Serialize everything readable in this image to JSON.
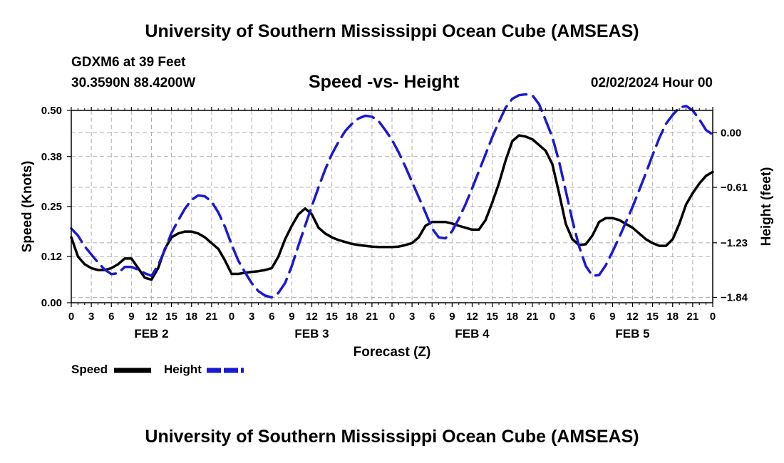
{
  "header": {
    "title": "University of Southern Mississippi Ocean Cube (AMSEAS)",
    "station": "GDXM6 at 39 Feet",
    "coords": "30.3590N  88.4200W",
    "subtitle": "Speed -vs- Height",
    "datetime": "02/02/2024 Hour 00"
  },
  "footer": {
    "title": "University of Southern Mississippi Ocean Cube (AMSEAS)"
  },
  "legend": {
    "speed": "Speed",
    "height": "Height"
  },
  "colors": {
    "speed": "#000000",
    "height": "#1a1ad0",
    "grid": "#b0b0b0"
  },
  "chart_data": {
    "type": "line",
    "title": "Speed -vs- Height",
    "xlabel": "Forecast (Z)",
    "ylabel": "Speed (Knots)",
    "y2label": "Height (feet)",
    "xlim": [
      0,
      96
    ],
    "ylim": [
      0,
      0.5
    ],
    "y2lim": [
      -1.9,
      0.25
    ],
    "x_ticks": [
      0,
      3,
      6,
      9,
      12,
      15,
      18,
      21,
      24,
      27,
      30,
      33,
      36,
      39,
      42,
      45,
      48,
      51,
      54,
      57,
      60,
      63,
      66,
      69,
      72,
      75,
      78,
      81,
      84,
      87,
      90,
      93,
      96
    ],
    "x_tick_labels": [
      "0",
      "3",
      "6",
      "9",
      "12",
      "15",
      "18",
      "21",
      "0",
      "3",
      "6",
      "9",
      "12",
      "15",
      "18",
      "21",
      "0",
      "3",
      "6",
      "9",
      "12",
      "15",
      "18",
      "21",
      "0",
      "3",
      "6",
      "9",
      "12",
      "15",
      "18",
      "21",
      "0"
    ],
    "day_labels": [
      {
        "label": "FEB 2",
        "x": 12
      },
      {
        "label": "FEB 3",
        "x": 36
      },
      {
        "label": "FEB 4",
        "x": 60
      },
      {
        "label": "FEB 5",
        "x": 84
      }
    ],
    "y_ticks": [
      0,
      0.12,
      0.25,
      0.38,
      0.5
    ],
    "y_tick_labels": [
      "0.00",
      "0.12",
      "0.25",
      "0.38",
      "0.50"
    ],
    "y2_ticks": [
      0,
      -0.61,
      -1.23,
      -1.84
    ],
    "y2_tick_labels": [
      "0.00",
      "−0.61",
      "−1.23",
      "−1.84"
    ],
    "series": [
      {
        "name": "Speed",
        "axis": "left",
        "style": "solid",
        "x": [
          0,
          1,
          2,
          3,
          4,
          5,
          6,
          7,
          8,
          9,
          10,
          11,
          12,
          13,
          14,
          15,
          16,
          17,
          18,
          19,
          20,
          21,
          22,
          23,
          24,
          25,
          26,
          27,
          28,
          29,
          30,
          31,
          32,
          33,
          34,
          35,
          36,
          37,
          38,
          39,
          40,
          41,
          42,
          43,
          44,
          45,
          46,
          47,
          48,
          49,
          50,
          51,
          52,
          53,
          54,
          55,
          56,
          57,
          58,
          59,
          60,
          61,
          62,
          63,
          64,
          65,
          66,
          67,
          68,
          69,
          70,
          71,
          72,
          73,
          74,
          75,
          76,
          77,
          78,
          79,
          80,
          81,
          82,
          83,
          84,
          85,
          86,
          87,
          88,
          89,
          90,
          91,
          92,
          93,
          94,
          95,
          96
        ],
        "values": [
          0.17,
          0.12,
          0.1,
          0.09,
          0.085,
          0.085,
          0.09,
          0.1,
          0.115,
          0.115,
          0.09,
          0.065,
          0.06,
          0.09,
          0.14,
          0.17,
          0.18,
          0.185,
          0.185,
          0.18,
          0.17,
          0.155,
          0.14,
          0.11,
          0.075,
          0.075,
          0.078,
          0.08,
          0.082,
          0.085,
          0.09,
          0.12,
          0.165,
          0.2,
          0.23,
          0.245,
          0.23,
          0.195,
          0.18,
          0.17,
          0.163,
          0.158,
          0.153,
          0.15,
          0.148,
          0.146,
          0.145,
          0.145,
          0.145,
          0.146,
          0.15,
          0.155,
          0.17,
          0.2,
          0.21,
          0.21,
          0.21,
          0.206,
          0.2,
          0.195,
          0.19,
          0.19,
          0.215,
          0.26,
          0.31,
          0.37,
          0.42,
          0.435,
          0.432,
          0.425,
          0.41,
          0.395,
          0.36,
          0.285,
          0.205,
          0.165,
          0.15,
          0.152,
          0.175,
          0.21,
          0.22,
          0.22,
          0.215,
          0.205,
          0.195,
          0.18,
          0.165,
          0.155,
          0.148,
          0.148,
          0.165,
          0.205,
          0.255,
          0.285,
          0.31,
          0.33,
          0.34
        ]
      },
      {
        "name": "Height",
        "axis": "right",
        "style": "dashed",
        "x": [
          0,
          1,
          2,
          3,
          4,
          5,
          6,
          7,
          8,
          9,
          10,
          11,
          12,
          13,
          14,
          15,
          16,
          17,
          18,
          19,
          20,
          21,
          22,
          23,
          24,
          25,
          26,
          27,
          28,
          29,
          30,
          31,
          32,
          33,
          34,
          35,
          36,
          37,
          38,
          39,
          40,
          41,
          42,
          43,
          44,
          45,
          46,
          47,
          48,
          49,
          50,
          51,
          52,
          53,
          54,
          55,
          56,
          57,
          58,
          59,
          60,
          61,
          62,
          63,
          64,
          65,
          66,
          67,
          68,
          69,
          70,
          71,
          72,
          73,
          74,
          75,
          76,
          77,
          78,
          79,
          80,
          81,
          82,
          83,
          84,
          85,
          86,
          87,
          88,
          89,
          90,
          91,
          92,
          93,
          94,
          95,
          96
        ],
        "values": [
          -1.07,
          -1.15,
          -1.27,
          -1.36,
          -1.45,
          -1.53,
          -1.58,
          -1.57,
          -1.5,
          -1.5,
          -1.53,
          -1.57,
          -1.6,
          -1.48,
          -1.31,
          -1.12,
          -0.98,
          -0.85,
          -0.75,
          -0.7,
          -0.71,
          -0.77,
          -0.89,
          -1.05,
          -1.25,
          -1.43,
          -1.56,
          -1.68,
          -1.77,
          -1.82,
          -1.84,
          -1.79,
          -1.68,
          -1.49,
          -1.26,
          -1.04,
          -0.82,
          -0.61,
          -0.41,
          -0.24,
          -0.1,
          0.02,
          0.1,
          0.16,
          0.19,
          0.18,
          0.13,
          0.03,
          -0.08,
          -0.22,
          -0.38,
          -0.55,
          -0.72,
          -0.89,
          -1.07,
          -1.17,
          -1.18,
          -1.1,
          -0.96,
          -0.8,
          -0.62,
          -0.43,
          -0.24,
          -0.05,
          0.12,
          0.28,
          0.38,
          0.42,
          0.43,
          0.42,
          0.32,
          0.14,
          -0.05,
          -0.32,
          -0.65,
          -0.98,
          -1.27,
          -1.49,
          -1.6,
          -1.59,
          -1.48,
          -1.33,
          -1.17,
          -1.0,
          -0.83,
          -0.64,
          -0.45,
          -0.25,
          -0.06,
          0.1,
          0.2,
          0.28,
          0.3,
          0.25,
          0.15,
          0.03,
          -0.02
        ]
      }
    ]
  }
}
